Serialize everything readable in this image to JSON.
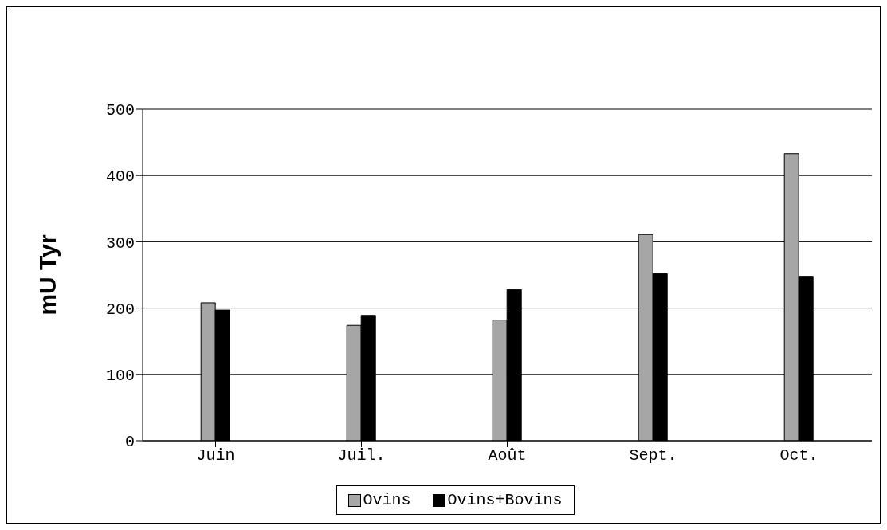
{
  "chart_data": {
    "type": "bar",
    "ylabel": "mU Tyr",
    "categories": [
      "Juin",
      "Juil.",
      "Août",
      "Sept.",
      "Oct."
    ],
    "series": [
      {
        "name": "Ovins",
        "color": "#a6a6a6",
        "values": [
          208,
          174,
          182,
          311,
          433
        ]
      },
      {
        "name": "Ovins+Bovins",
        "color": "#000000",
        "values": [
          197,
          189,
          228,
          252,
          248
        ]
      }
    ],
    "ylim": [
      0,
      500
    ],
    "yticks": [
      0,
      100,
      200,
      300,
      400,
      500
    ],
    "grid": "y",
    "legend": "bottom"
  }
}
